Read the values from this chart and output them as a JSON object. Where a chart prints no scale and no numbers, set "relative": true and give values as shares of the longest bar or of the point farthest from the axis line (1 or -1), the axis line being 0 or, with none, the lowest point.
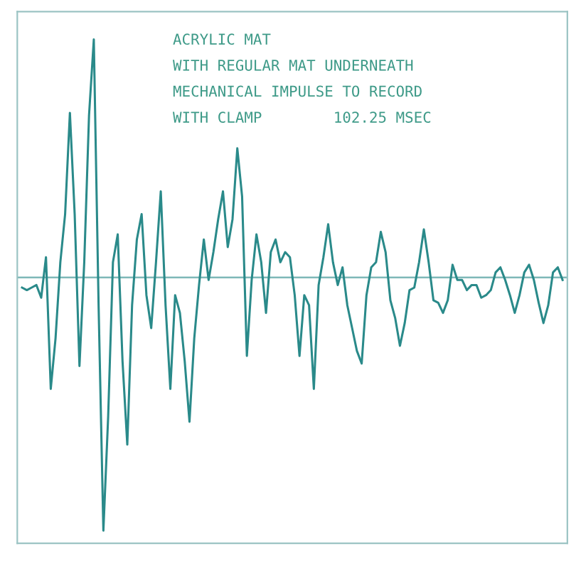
{
  "chart_data": {
    "type": "line",
    "relative": true,
    "tick_labels": false,
    "ref_lines": [
      {
        "axis": "y",
        "value": 0,
        "color": "#7fb8b8"
      }
    ],
    "annotations": [
      "ACRYLIC MAT",
      "WITH REGULAR MAT UNDERNEATH",
      "MECHANICAL IMPULSE TO RECORD",
      "WITH CLAMP        102.25 MSEC"
    ],
    "categories": [
      null,
      null,
      null,
      null,
      null,
      null,
      null,
      null,
      null,
      null,
      null,
      null,
      null,
      null,
      null,
      null,
      null,
      null,
      null,
      null,
      null,
      null,
      null,
      null,
      null,
      null,
      null,
      null,
      null,
      null,
      null,
      null,
      null,
      null,
      null,
      null,
      null,
      null,
      null,
      null,
      null,
      null,
      null,
      null,
      null,
      null,
      null,
      null,
      null,
      null,
      null,
      null,
      null,
      null,
      null,
      null,
      null,
      null,
      null,
      null,
      null,
      null,
      null,
      null,
      null,
      null,
      null,
      null,
      null,
      null,
      null,
      null,
      null,
      null,
      null,
      null,
      null,
      null,
      null,
      null,
      null,
      null,
      null,
      null,
      null,
      null,
      null,
      null,
      null,
      null,
      null,
      null,
      null,
      null,
      null,
      null,
      null,
      null,
      null,
      null,
      null,
      null,
      null,
      null,
      null,
      null,
      null,
      null,
      null,
      null,
      null,
      null,
      null,
      null
    ],
    "series": [
      {
        "color": "#2a8a8a",
        "values": [
          -0.04,
          -0.05,
          -0.04,
          -0.03,
          -0.08,
          0.08,
          -0.44,
          -0.24,
          0.06,
          0.25,
          0.65,
          0.25,
          -0.35,
          0.06,
          0.64,
          0.94,
          -0.11,
          -1.0,
          -0.55,
          0.06,
          0.17,
          -0.33,
          -0.66,
          -0.11,
          0.15,
          0.25,
          -0.07,
          -0.2,
          0.06,
          0.34,
          -0.11,
          -0.44,
          -0.07,
          -0.14,
          -0.33,
          -0.57,
          -0.24,
          -0.03,
          0.15,
          -0.01,
          0.1,
          0.23,
          0.34,
          0.12,
          0.23,
          0.51,
          0.32,
          -0.31,
          -0.01,
          0.17,
          0.06,
          -0.14,
          0.1,
          0.15,
          0.06,
          0.1,
          0.08,
          -0.07,
          -0.31,
          -0.07,
          -0.11,
          -0.44,
          -0.03,
          0.08,
          0.21,
          0.06,
          -0.03,
          0.04,
          -0.11,
          -0.2,
          -0.29,
          -0.34,
          -0.07,
          0.04,
          0.06,
          0.18,
          0.1,
          -0.09,
          -0.16,
          -0.27,
          -0.18,
          -0.05,
          -0.04,
          0.06,
          0.19,
          0.06,
          -0.09,
          -0.1,
          -0.14,
          -0.09,
          0.05,
          -0.01,
          -0.01,
          -0.05,
          -0.03,
          -0.03,
          -0.08,
          -0.07,
          -0.05,
          0.02,
          0.04,
          -0.01,
          -0.07,
          -0.14,
          -0.07,
          0.02,
          0.05,
          -0.01,
          -0.1,
          -0.18,
          -0.11,
          0.02,
          0.04,
          -0.01
        ]
      }
    ]
  }
}
